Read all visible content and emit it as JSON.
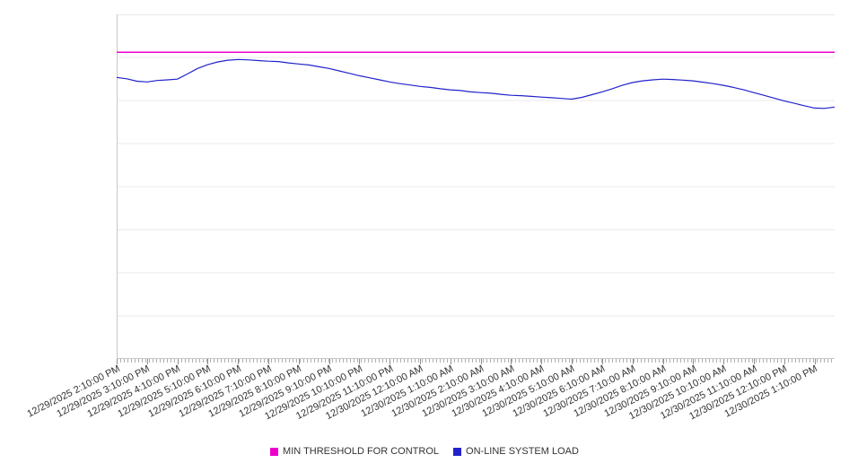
{
  "colors": {
    "background": "#ffffff",
    "gridline": "#e9e9ef",
    "axis": "#c8c8c8",
    "tick": "#8f8f8f",
    "label_text": "#333333",
    "threshold_line": "#ee00cc",
    "load_line": "#2222cc"
  },
  "chart_data": {
    "type": "line",
    "title": "",
    "xlabel": "",
    "ylabel": "",
    "grid": true,
    "legend_position": "bottom",
    "x_axis": {
      "points_per_label": 3,
      "labels": [
        "12/29/2025 2:10:00 PM",
        "12/29/2025 3:10:00 PM",
        "12/29/2025 4:10:00 PM",
        "12/29/2025 5:10:00 PM",
        "12/29/2025 6:10:00 PM",
        "12/29/2025 7:10:00 PM",
        "12/29/2025 8:10:00 PM",
        "12/29/2025 9:10:00 PM",
        "12/29/2025 10:10:00 PM",
        "12/29/2025 11:10:00 PM",
        "12/30/2025 12:10:00 AM",
        "12/30/2025 1:10:00 AM",
        "12/30/2025 2:10:00 AM",
        "12/30/2025 3:10:00 AM",
        "12/30/2025 4:10:00 AM",
        "12/30/2025 5:10:00 AM",
        "12/30/2025 6:10:00 AM",
        "12/30/2025 7:10:00 AM",
        "12/30/2025 8:10:00 AM",
        "12/30/2025 9:10:00 AM",
        "12/30/2025 10:10:00 AM",
        "12/30/2025 11:10:00 AM",
        "12/30/2025 12:10:00 PM",
        "12/30/2025 1:10:00 PM"
      ]
    },
    "y_axis": {
      "min": 0,
      "max": 100,
      "gridline_intervals": 8,
      "show_labels": false
    },
    "series": [
      {
        "name": "MIN THRESHOLD FOR CONTROL",
        "type": "threshold",
        "color": "#ee00cc",
        "value": 89
      },
      {
        "name": "ON-LINE SYSTEM LOAD",
        "type": "line",
        "color": "#2222cc",
        "values": [
          81.7,
          81.3,
          80.6,
          80.4,
          80.8,
          81.0,
          81.2,
          82.7,
          84.3,
          85.4,
          86.2,
          86.7,
          86.9,
          86.8,
          86.6,
          86.4,
          86.3,
          85.9,
          85.6,
          85.3,
          84.8,
          84.3,
          83.6,
          82.9,
          82.2,
          81.6,
          81.0,
          80.4,
          79.9,
          79.5,
          79.1,
          78.8,
          78.4,
          78.1,
          77.9,
          77.5,
          77.3,
          77.1,
          76.8,
          76.5,
          76.4,
          76.2,
          76.0,
          75.8,
          75.6,
          75.4,
          75.9,
          76.7,
          77.5,
          78.4,
          79.4,
          80.2,
          80.7,
          81.0,
          81.2,
          81.1,
          80.9,
          80.7,
          80.3,
          79.9,
          79.4,
          78.8,
          78.1,
          77.3,
          76.5,
          75.7,
          74.9,
          74.2,
          73.5,
          72.8,
          72.7,
          73.1
        ]
      }
    ],
    "legend": {
      "items": [
        {
          "label": "MIN THRESHOLD FOR CONTROL",
          "color": "#ee00cc"
        },
        {
          "label": "ON-LINE SYSTEM LOAD",
          "color": "#2222cc"
        }
      ]
    }
  }
}
